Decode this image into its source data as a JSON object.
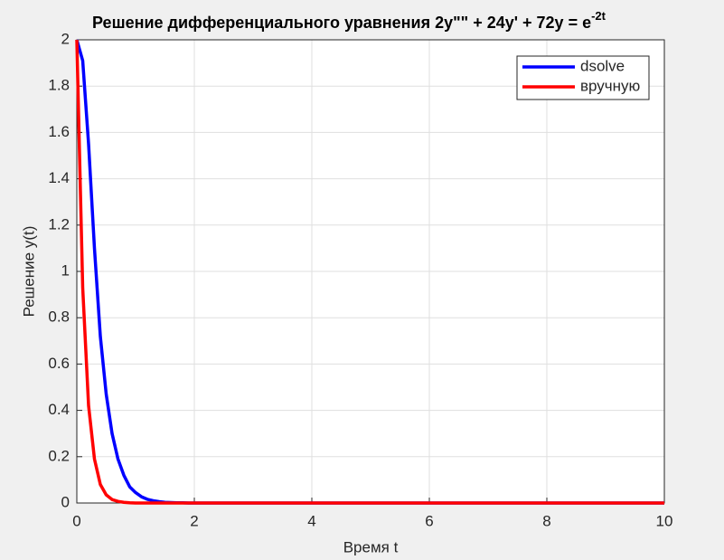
{
  "chart_data": {
    "type": "line",
    "title": "Решение дифференциального уравнения 2y\"\" + 24y' + 72y = e",
    "title_superscript": "-2t",
    "x_label": "Время t",
    "y_label": "Решение y(t)",
    "x": [
      0,
      0.1,
      0.2,
      0.3,
      0.4,
      0.5,
      0.6,
      0.7,
      0.8,
      0.9,
      1,
      1.1,
      1.2,
      1.3,
      1.4,
      1.5,
      1.6,
      1.7,
      1.8,
      1.9,
      2,
      3,
      4,
      5,
      6,
      7,
      8,
      9,
      10
    ],
    "series": [
      {
        "name": "dsolve",
        "color": "#0000ff",
        "values": [
          2,
          1.91,
          1.55,
          1.1,
          0.72,
          0.47,
          0.3,
          0.19,
          0.12,
          0.07,
          0.045,
          0.027,
          0.016,
          0.01,
          0.006,
          0.003,
          0.002,
          0.001,
          0.001,
          0,
          0,
          0,
          0,
          0,
          0,
          0,
          0,
          0,
          0
        ]
      },
      {
        "name": "вручную",
        "color": "#ff0000",
        "values": [
          2,
          0.93,
          0.42,
          0.19,
          0.08,
          0.035,
          0.015,
          0.007,
          0.003,
          0.001,
          0,
          0,
          0,
          0,
          0,
          0,
          0,
          0,
          0,
          0,
          0,
          0,
          0,
          0,
          0,
          0,
          0,
          0,
          0
        ]
      }
    ],
    "xlim": [
      0,
      10
    ],
    "xticks": [
      0,
      2,
      4,
      6,
      8,
      10
    ],
    "ylim": [
      0,
      2
    ],
    "yticks": [
      0,
      0.2,
      0.4,
      0.6,
      0.8,
      1,
      1.2,
      1.4,
      1.6,
      1.8,
      2
    ],
    "grid": true,
    "legend": "top-right"
  }
}
